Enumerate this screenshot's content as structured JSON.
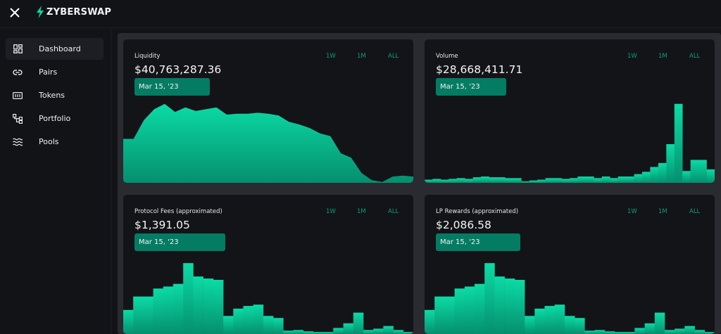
{
  "app": {
    "logo_text": "ZYBERSWAP"
  },
  "colors": {
    "accent": "#0bd6a0",
    "badge": "#047c63",
    "range_text": "#0d9d78",
    "background": "#121317",
    "card": "#131418"
  },
  "icons": {
    "close": "close-icon",
    "logo": "lightning-bolt-icon"
  },
  "sidebar": {
    "items": [
      {
        "label": "Dashboard",
        "icon": "dashboard-grid-icon",
        "active": true
      },
      {
        "label": "Pairs",
        "icon": "link-icon",
        "active": false
      },
      {
        "label": "Tokens",
        "icon": "tokens-icon",
        "active": false
      },
      {
        "label": "Portfolio",
        "icon": "portfolio-tree-icon",
        "active": false
      },
      {
        "label": "Pools",
        "icon": "waves-icon",
        "active": false
      }
    ]
  },
  "cards": [
    {
      "title": "Liquidity",
      "value": "$40,763,287.36",
      "date": "Mar 15, '23",
      "ranges": [
        "1W",
        "1M",
        "ALL"
      ],
      "chart_type": "area"
    },
    {
      "title": "Volume",
      "value": "$28,668,411.71",
      "date": "Mar 15, '23",
      "ranges": [
        "1W",
        "1M",
        "ALL"
      ],
      "chart_type": "bar"
    },
    {
      "title": "Protocol Fees (approximated)",
      "value": "$1,391.05",
      "date": "Mar 15, '23",
      "ranges": [
        "1W",
        "1M",
        "ALL"
      ],
      "chart_type": "bar"
    },
    {
      "title": "LP Rewards (approximated)",
      "value": "$2,086.58",
      "date": "Mar 15, '23",
      "ranges": [
        "1W",
        "1M",
        "ALL"
      ],
      "chart_type": "bar"
    }
  ],
  "chart_data": [
    {
      "type": "area",
      "title": "Liquidity",
      "values": [
        0.49,
        0.49,
        0.7,
        0.82,
        0.88,
        0.79,
        0.84,
        0.8,
        0.82,
        0.84,
        0.76,
        0.77,
        0.77,
        0.78,
        0.77,
        0.75,
        0.68,
        0.65,
        0.61,
        0.55,
        0.52,
        0.33,
        0.28,
        0.11,
        0.03,
        0.01,
        0.07,
        0.08,
        0.07
      ]
    },
    {
      "type": "bar",
      "title": "Volume",
      "values": [
        0.04,
        0.05,
        0.04,
        0.05,
        0.06,
        0.05,
        0.07,
        0.08,
        0.07,
        0.07,
        0.06,
        0.06,
        0.02,
        0.03,
        0.04,
        0.06,
        0.06,
        0.05,
        0.06,
        0.08,
        0.08,
        0.06,
        0.08,
        0.06,
        0.08,
        0.08,
        0.11,
        0.14,
        0.2,
        0.25,
        0.49,
        1.0,
        0.15,
        0.29,
        0.29,
        0.17
      ]
    },
    {
      "type": "bar",
      "title": "Protocol Fees (approximated)",
      "values": [
        0.36,
        0.56,
        0.56,
        0.68,
        0.71,
        0.75,
        1.06,
        0.86,
        0.83,
        0.81,
        0.27,
        0.38,
        0.42,
        0.44,
        0.27,
        0.24,
        0.05,
        0.06,
        0.04,
        0.03,
        0.03,
        0.09,
        0.16,
        0.32,
        0.06,
        0.08,
        0.12,
        0.06,
        0.03
      ]
    },
    {
      "type": "bar",
      "title": "LP Rewards (approximated)",
      "values": [
        0.36,
        0.56,
        0.56,
        0.68,
        0.71,
        0.75,
        1.06,
        0.86,
        0.83,
        0.81,
        0.27,
        0.38,
        0.42,
        0.44,
        0.27,
        0.24,
        0.05,
        0.06,
        0.04,
        0.03,
        0.03,
        0.09,
        0.16,
        0.32,
        0.06,
        0.08,
        0.12,
        0.06,
        0.03
      ]
    }
  ]
}
